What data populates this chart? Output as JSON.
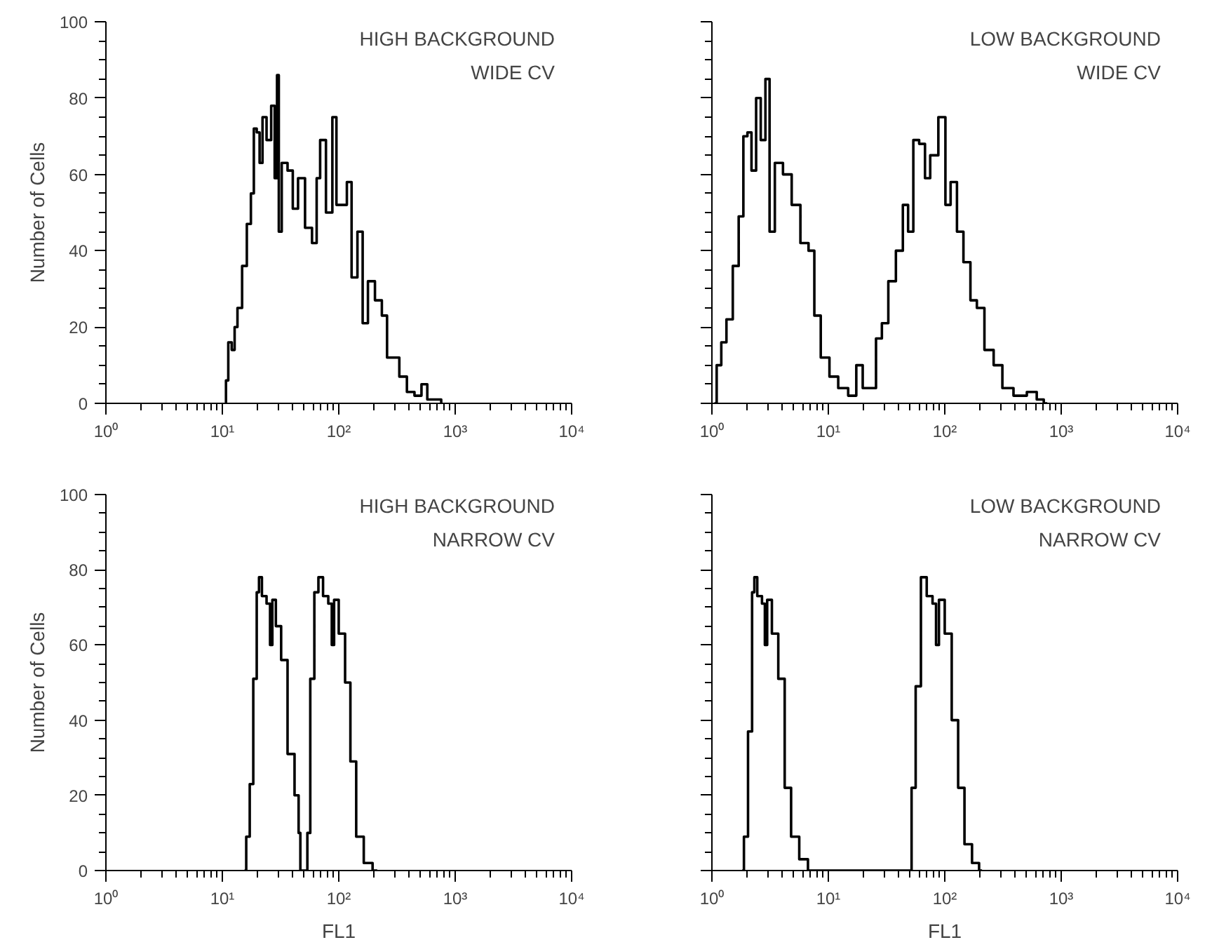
{
  "chart_data": [
    {
      "type": "step",
      "annotations": [
        "HIGH BACKGROUND",
        "WIDE CV"
      ],
      "ylabel": "Number of Cells",
      "log": "x",
      "grid": false,
      "tick_labels": true,
      "xlim": [
        1,
        10000
      ],
      "ylim": [
        0,
        100
      ],
      "xticks": [
        {
          "value": 1,
          "label": "10⁰"
        },
        {
          "value": 10,
          "label": "10¹"
        },
        {
          "value": 100,
          "label": "10²"
        },
        {
          "value": 1000,
          "label": "10³"
        },
        {
          "value": 10000,
          "label": "10⁴"
        }
      ],
      "yticks": [
        0,
        20,
        40,
        60,
        80,
        100
      ],
      "series": [
        {
          "color": "#000000",
          "x": [
            10.5,
            11.0,
            11.5,
            12.6,
            12.9,
            14.1,
            15.5,
            17.0,
            18.2,
            19.1,
            20.4,
            21.4,
            22.9,
            25.1,
            27.5,
            28.8,
            30.2,
            30.9,
            33.9,
            38.9,
            41.7,
            47.9,
            55.0,
            63.1,
            66.1,
            72.4,
            83.2,
            93.3,
            97.7,
            112,
            123,
            135,
            155,
            166,
            191,
            219,
            251,
            269,
            309,
            355,
            417,
            479,
            550,
            603,
            741,
            776
          ],
          "values": [
            0,
            6,
            16,
            14,
            20,
            25,
            36,
            47,
            55,
            72,
            71,
            63,
            75,
            69,
            78,
            59,
            86,
            45,
            63,
            61,
            51,
            59,
            46,
            42,
            59,
            69,
            50,
            75,
            52,
            52,
            58,
            33,
            45,
            21,
            32,
            27,
            23,
            12,
            12,
            7,
            3,
            2,
            5,
            1,
            1,
            0
          ]
        }
      ]
    },
    {
      "type": "step",
      "annotations": [
        "LOW BACKGROUND",
        "WIDE CV"
      ],
      "log": "x",
      "grid": false,
      "tick_labels": "x",
      "xlim": [
        1,
        10000
      ],
      "ylim": [
        0,
        100
      ],
      "xticks": [
        {
          "value": 1,
          "label": "10⁰"
        },
        {
          "value": 10,
          "label": "10¹"
        },
        {
          "value": 100,
          "label": "10²"
        },
        {
          "value": 1000,
          "label": "10³"
        },
        {
          "value": 10000,
          "label": "10⁴"
        }
      ],
      "yticks": [
        0,
        20,
        40,
        60,
        80,
        100
      ],
      "series": [
        {
          "color": "#000000",
          "x": [
            1.05,
            1.15,
            1.26,
            1.41,
            1.62,
            1.78,
            1.95,
            2.09,
            2.29,
            2.51,
            2.75,
            3.02,
            3.24,
            3.72,
            4.47,
            5.25,
            6.31,
            7.24,
            7.94,
            9.33,
            11.2,
            13.2,
            16.6,
            18.2,
            21.4,
            24.5,
            26.9,
            30.9,
            34.7,
            41.7,
            45.7,
            51.3,
            56.2,
            64.6,
            70.8,
            79.4,
            97.7,
            105,
            120,
            135,
            155,
            178,
            200,
            240,
            288,
            339,
            447,
            575,
            661,
            759
          ],
          "values": [
            0,
            10,
            16,
            22,
            36,
            49,
            70,
            71,
            61,
            80,
            69,
            85,
            45,
            63,
            60,
            52,
            42,
            40,
            23,
            12,
            7,
            4,
            2,
            10,
            4,
            4,
            17,
            21,
            32,
            40,
            52,
            45,
            69,
            68,
            59,
            65,
            75,
            52,
            58,
            45,
            37,
            27,
            25,
            14,
            10,
            4,
            2,
            3,
            1,
            0
          ]
        }
      ]
    },
    {
      "type": "step",
      "annotations": [
        "HIGH BACKGROUND",
        "NARROW CV"
      ],
      "xlabel": "FL1",
      "ylabel": "Number of Cells",
      "log": "x",
      "grid": false,
      "tick_labels": true,
      "xlim": [
        1,
        10000
      ],
      "ylim": [
        0,
        100
      ],
      "xticks": [
        {
          "value": 1,
          "label": "10⁰"
        },
        {
          "value": 10,
          "label": "10¹"
        },
        {
          "value": 100,
          "label": "10²"
        },
        {
          "value": 1000,
          "label": "10³"
        },
        {
          "value": 10000,
          "label": "10⁴"
        }
      ],
      "yticks": [
        0,
        20,
        40,
        60,
        80,
        100
      ],
      "series": [
        {
          "color": "#000000",
          "x": [
            15.5,
            16.6,
            17.8,
            19.1,
            20.4,
            20.9,
            22.9,
            25.1,
            26.3,
            27.5,
            30.2,
            33.9,
            38.9,
            44.7,
            45.7,
            47.9,
            52.5,
            55.0,
            58.9,
            64.6,
            69.2,
            77.6,
            85.1,
            89.1,
            93.3,
            107,
            120,
            132,
            151,
            178,
            214
          ],
          "values": [
            0,
            9,
            23,
            51,
            74,
            78,
            73,
            71,
            60,
            72,
            65,
            56,
            31,
            20,
            10,
            0,
            0,
            10,
            51,
            74,
            78,
            73,
            71,
            60,
            72,
            63,
            50,
            29,
            9,
            2,
            0
          ]
        }
      ]
    },
    {
      "type": "step",
      "annotations": [
        "LOW BACKGROUND",
        "NARROW CV"
      ],
      "xlabel": "FL1",
      "log": "x",
      "grid": false,
      "tick_labels": "x",
      "xlim": [
        1,
        10000
      ],
      "ylim": [
        0,
        100
      ],
      "xticks": [
        {
          "value": 1,
          "label": "10⁰"
        },
        {
          "value": 10,
          "label": "10¹"
        },
        {
          "value": 100,
          "label": "10²"
        },
        {
          "value": 1000,
          "label": "10³"
        },
        {
          "value": 10000,
          "label": "10⁴"
        }
      ],
      "yticks": [
        0,
        20,
        40,
        60,
        80,
        100
      ],
      "series": [
        {
          "color": "#000000",
          "x": [
            1.82,
            1.95,
            2.14,
            2.29,
            2.34,
            2.57,
            2.82,
            2.88,
            3.09,
            3.47,
            3.98,
            4.47,
            5.13,
            6.17,
            7.24,
            50.1,
            53.7,
            58.9,
            66.1,
            74.1,
            83.2,
            85.1,
            93.3,
            107,
            123,
            138,
            158,
            186,
            209
          ],
          "values": [
            0,
            9,
            37,
            74,
            78,
            73,
            71,
            60,
            72,
            63,
            51,
            22,
            9,
            3,
            0,
            0,
            22,
            49,
            78,
            73,
            71,
            60,
            72,
            63,
            40,
            22,
            7,
            2,
            0
          ]
        }
      ]
    }
  ]
}
